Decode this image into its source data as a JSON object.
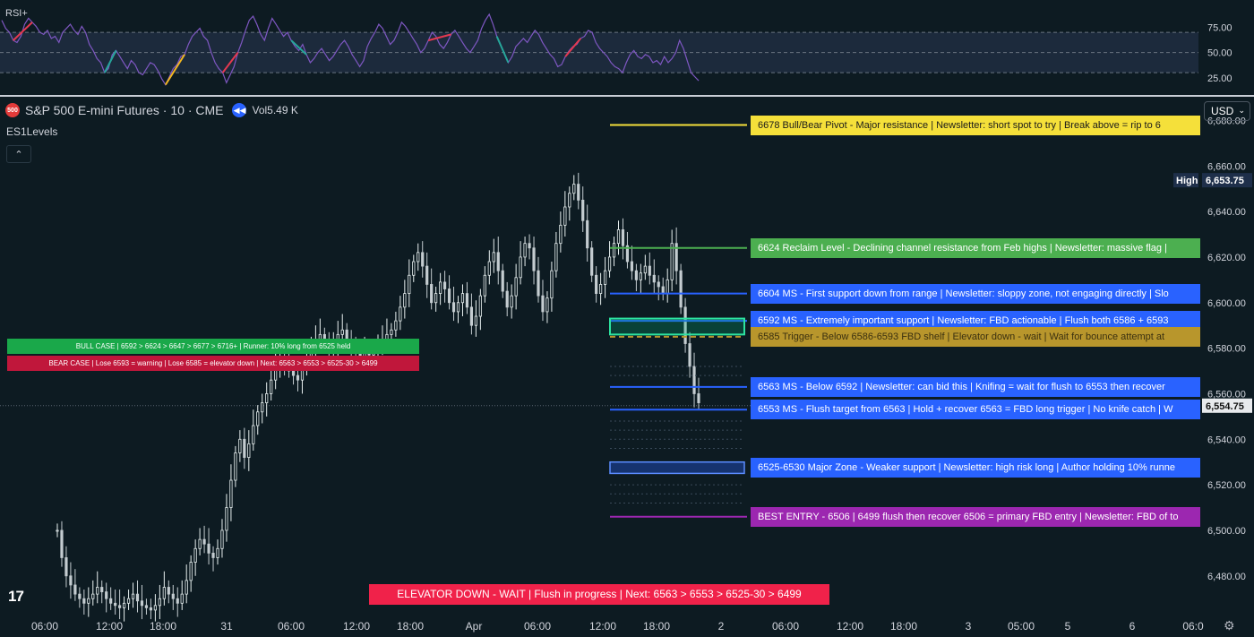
{
  "rsi": {
    "label": "RSI+",
    "ticks": [
      "75.00",
      "50.00",
      "25.00"
    ],
    "tick_values": [
      75,
      50,
      25
    ],
    "range": [
      15,
      95
    ],
    "overbought": 70,
    "oversold": 30,
    "line_color": "#7e57c2",
    "values": [
      82,
      74,
      70,
      62,
      60,
      66,
      78,
      84,
      80,
      76,
      70,
      68,
      72,
      64,
      66,
      60,
      70,
      74,
      78,
      72,
      68,
      76,
      70,
      58,
      52,
      44,
      40,
      30,
      34,
      48,
      52,
      46,
      40,
      34,
      42,
      38,
      30,
      28,
      34,
      40,
      38,
      32,
      24,
      18,
      26,
      34,
      38,
      46,
      48,
      58,
      66,
      70,
      74,
      66,
      62,
      50,
      40,
      34,
      30,
      20,
      28,
      36,
      50,
      60,
      72,
      82,
      86,
      78,
      68,
      62,
      74,
      84,
      78,
      72,
      66,
      70,
      62,
      56,
      52,
      58,
      48,
      40,
      44,
      50,
      54,
      48,
      42,
      46,
      52,
      58,
      62,
      56,
      48,
      42,
      36,
      42,
      56,
      64,
      70,
      78,
      74,
      66,
      58,
      62,
      70,
      80,
      76,
      70,
      64,
      58,
      50,
      54,
      62,
      70,
      66,
      58,
      54,
      60,
      68,
      72,
      66,
      60,
      54,
      50,
      56,
      62,
      74,
      82,
      88,
      78,
      66,
      58,
      48,
      40,
      46,
      56,
      60,
      64,
      60,
      66,
      72,
      68,
      60,
      54,
      48,
      44,
      36,
      38,
      46,
      52,
      56,
      58,
      64,
      66,
      72,
      70,
      60,
      54,
      50,
      46,
      40,
      36,
      34,
      30,
      40,
      48,
      52,
      46,
      44,
      48,
      46,
      40,
      42,
      38,
      46,
      40,
      44,
      50,
      62,
      54,
      42,
      30,
      26,
      22
    ]
  },
  "header": {
    "symbol_badge": "500",
    "title": "S&P 500 E-mini Futures · 10 · CME",
    "volume_label": "Vol",
    "volume_value": "5.49 K"
  },
  "indicator_name": "ES1Levels",
  "collapse_glyph": "⌃",
  "currency": "USD",
  "currency_chevron": "⌄",
  "tv_logo": "17",
  "settings_icon": "gear-icon",
  "settings_glyph": "⚙",
  "boxes": {
    "bull": "BULL CASE  |  6592 > 6624 > 6647 > 6677 > 6716+  |  Runner: 10% long from 6525 held",
    "bear": "BEAR CASE  |  Lose 6593 = warning  |  Lose 6585 = elevator down  |  Next: 6563 > 6553 > 6525-30 > 6499",
    "status": "ELEVATOR DOWN - WAIT   |   Flush in progress   |   Next: 6563 > 6553 > 6525-30 > 6499"
  },
  "levels": [
    {
      "price": 6678,
      "color": "#f5e03a",
      "text_color": "#1a1a1a",
      "text": "6678 Bull/Bear Pivot - Major resistance | Newsletter: short spot to try | Break above = rip to 6"
    },
    {
      "price": 6624,
      "color": "#4caf50",
      "text_color": "#ffffff",
      "text": "6624 Reclaim Level - Declining channel resistance from Feb highs | Newsletter: massive flag |"
    },
    {
      "price": 6604,
      "color": "#2962ff",
      "text_color": "#ffffff",
      "text": "6604 MS - First support down from range | Newsletter: sloppy zone, not engaging directly | Slo"
    },
    {
      "price": 6592,
      "color": "#2962ff",
      "text_color": "#ffffff",
      "text": "6592 MS - Extremely important support | Newsletter: FBD actionable | Flush both 6586 + 6593"
    },
    {
      "price": 6585,
      "color": "#b8962c",
      "text_color": "#3a3010",
      "text": "6585 Trigger - Below 6586-6593 FBD shelf | Elevator down - wait | Wait for bounce attempt at"
    },
    {
      "price": 6563,
      "color": "#2962ff",
      "text_color": "#ffffff",
      "text": "6563 MS - Below 6592 | Newsletter: can bid this | Knifing = wait for flush to 6553 then recover"
    },
    {
      "price": 6553,
      "color": "#2962ff",
      "text_color": "#ffffff",
      "text": "6553 MS - Flush target from 6563 | Hold + recover 6563 = FBD long trigger | No knife catch | W"
    },
    {
      "price": 6527.5,
      "color": "#2962ff",
      "text_color": "#ffffff",
      "text": "6525-6530 Major Zone - Weaker support | Newsletter: high risk long | Author holding 10% runne"
    },
    {
      "price": 6506,
      "color": "#9c27b0",
      "text_color": "#ffffff",
      "text": "BEST ENTRY - 6506 | 6499 flush then recover 6506 = primary FBD entry | Newsletter: FBD of to"
    }
  ],
  "chart_data": {
    "type": "candlestick",
    "ylim": [
      6463,
      6690
    ],
    "y_ticks": [
      6680,
      6660,
      6640,
      6620,
      6600,
      6580,
      6560,
      6540,
      6520,
      6500,
      6480
    ],
    "y_tick_labels": [
      "6,680.00",
      "6,660.00",
      "6,640.00",
      "6,620.00",
      "6,600.00",
      "6,580.00",
      "6,560.00",
      "6,540.00",
      "6,520.00",
      "6,500.00",
      "6,480.00"
    ],
    "x_ticks": [
      "06:00",
      "12:00",
      "18:00",
      "31",
      "06:00",
      "12:00",
      "18:00",
      "Apr",
      "06:00",
      "12:00",
      "18:00",
      "2",
      "06:00",
      "12:00",
      "18:00",
      "3",
      "05:00",
      "5",
      "6",
      "06:0"
    ],
    "high_label": "High",
    "high_value": "6,653.75",
    "high_price": 6653.75,
    "last_value": "6,554.75",
    "last_price": 6554.75,
    "close": [
      6500,
      6488,
      6480,
      6476,
      6472,
      6470,
      6468,
      6470,
      6472,
      6475,
      6473,
      6470,
      6468,
      6467,
      6466,
      6468,
      6470,
      6472,
      6469,
      6467,
      6466,
      6465,
      6467,
      6470,
      6475,
      6472,
      6470,
      6468,
      6472,
      6478,
      6486,
      6492,
      6496,
      6494,
      6490,
      6488,
      6492,
      6500,
      6510,
      6522,
      6534,
      6540,
      6532,
      6538,
      6546,
      6552,
      6556,
      6560,
      6566,
      6572,
      6576,
      6574,
      6570,
      6568,
      6566,
      6571,
      6576,
      6580,
      6584,
      6586,
      6583,
      6580,
      6582,
      6586,
      6588,
      6584,
      6580,
      6578,
      6576,
      6578,
      6577,
      6579,
      6581,
      6584,
      6586,
      6588,
      6592,
      6598,
      6604,
      6612,
      6618,
      6622,
      6616,
      6608,
      6600,
      6604,
      6609,
      6606,
      6600,
      6596,
      6600,
      6604,
      6598,
      6590,
      6594,
      6603,
      6612,
      6618,
      6622,
      6614,
      6605,
      6598,
      6603,
      6611,
      6620,
      6626,
      6624,
      6614,
      6603,
      6596,
      6602,
      6614,
      6626,
      6634,
      6642,
      6648,
      6652,
      6645,
      6636,
      6624,
      6612,
      6604,
      6608,
      6614,
      6620,
      6626,
      6632,
      6625,
      6618,
      6614,
      6610,
      6613,
      6616,
      6612,
      6609,
      6607,
      6604,
      6610,
      6626,
      6614,
      6598,
      6582,
      6572,
      6560,
      6556
    ]
  }
}
